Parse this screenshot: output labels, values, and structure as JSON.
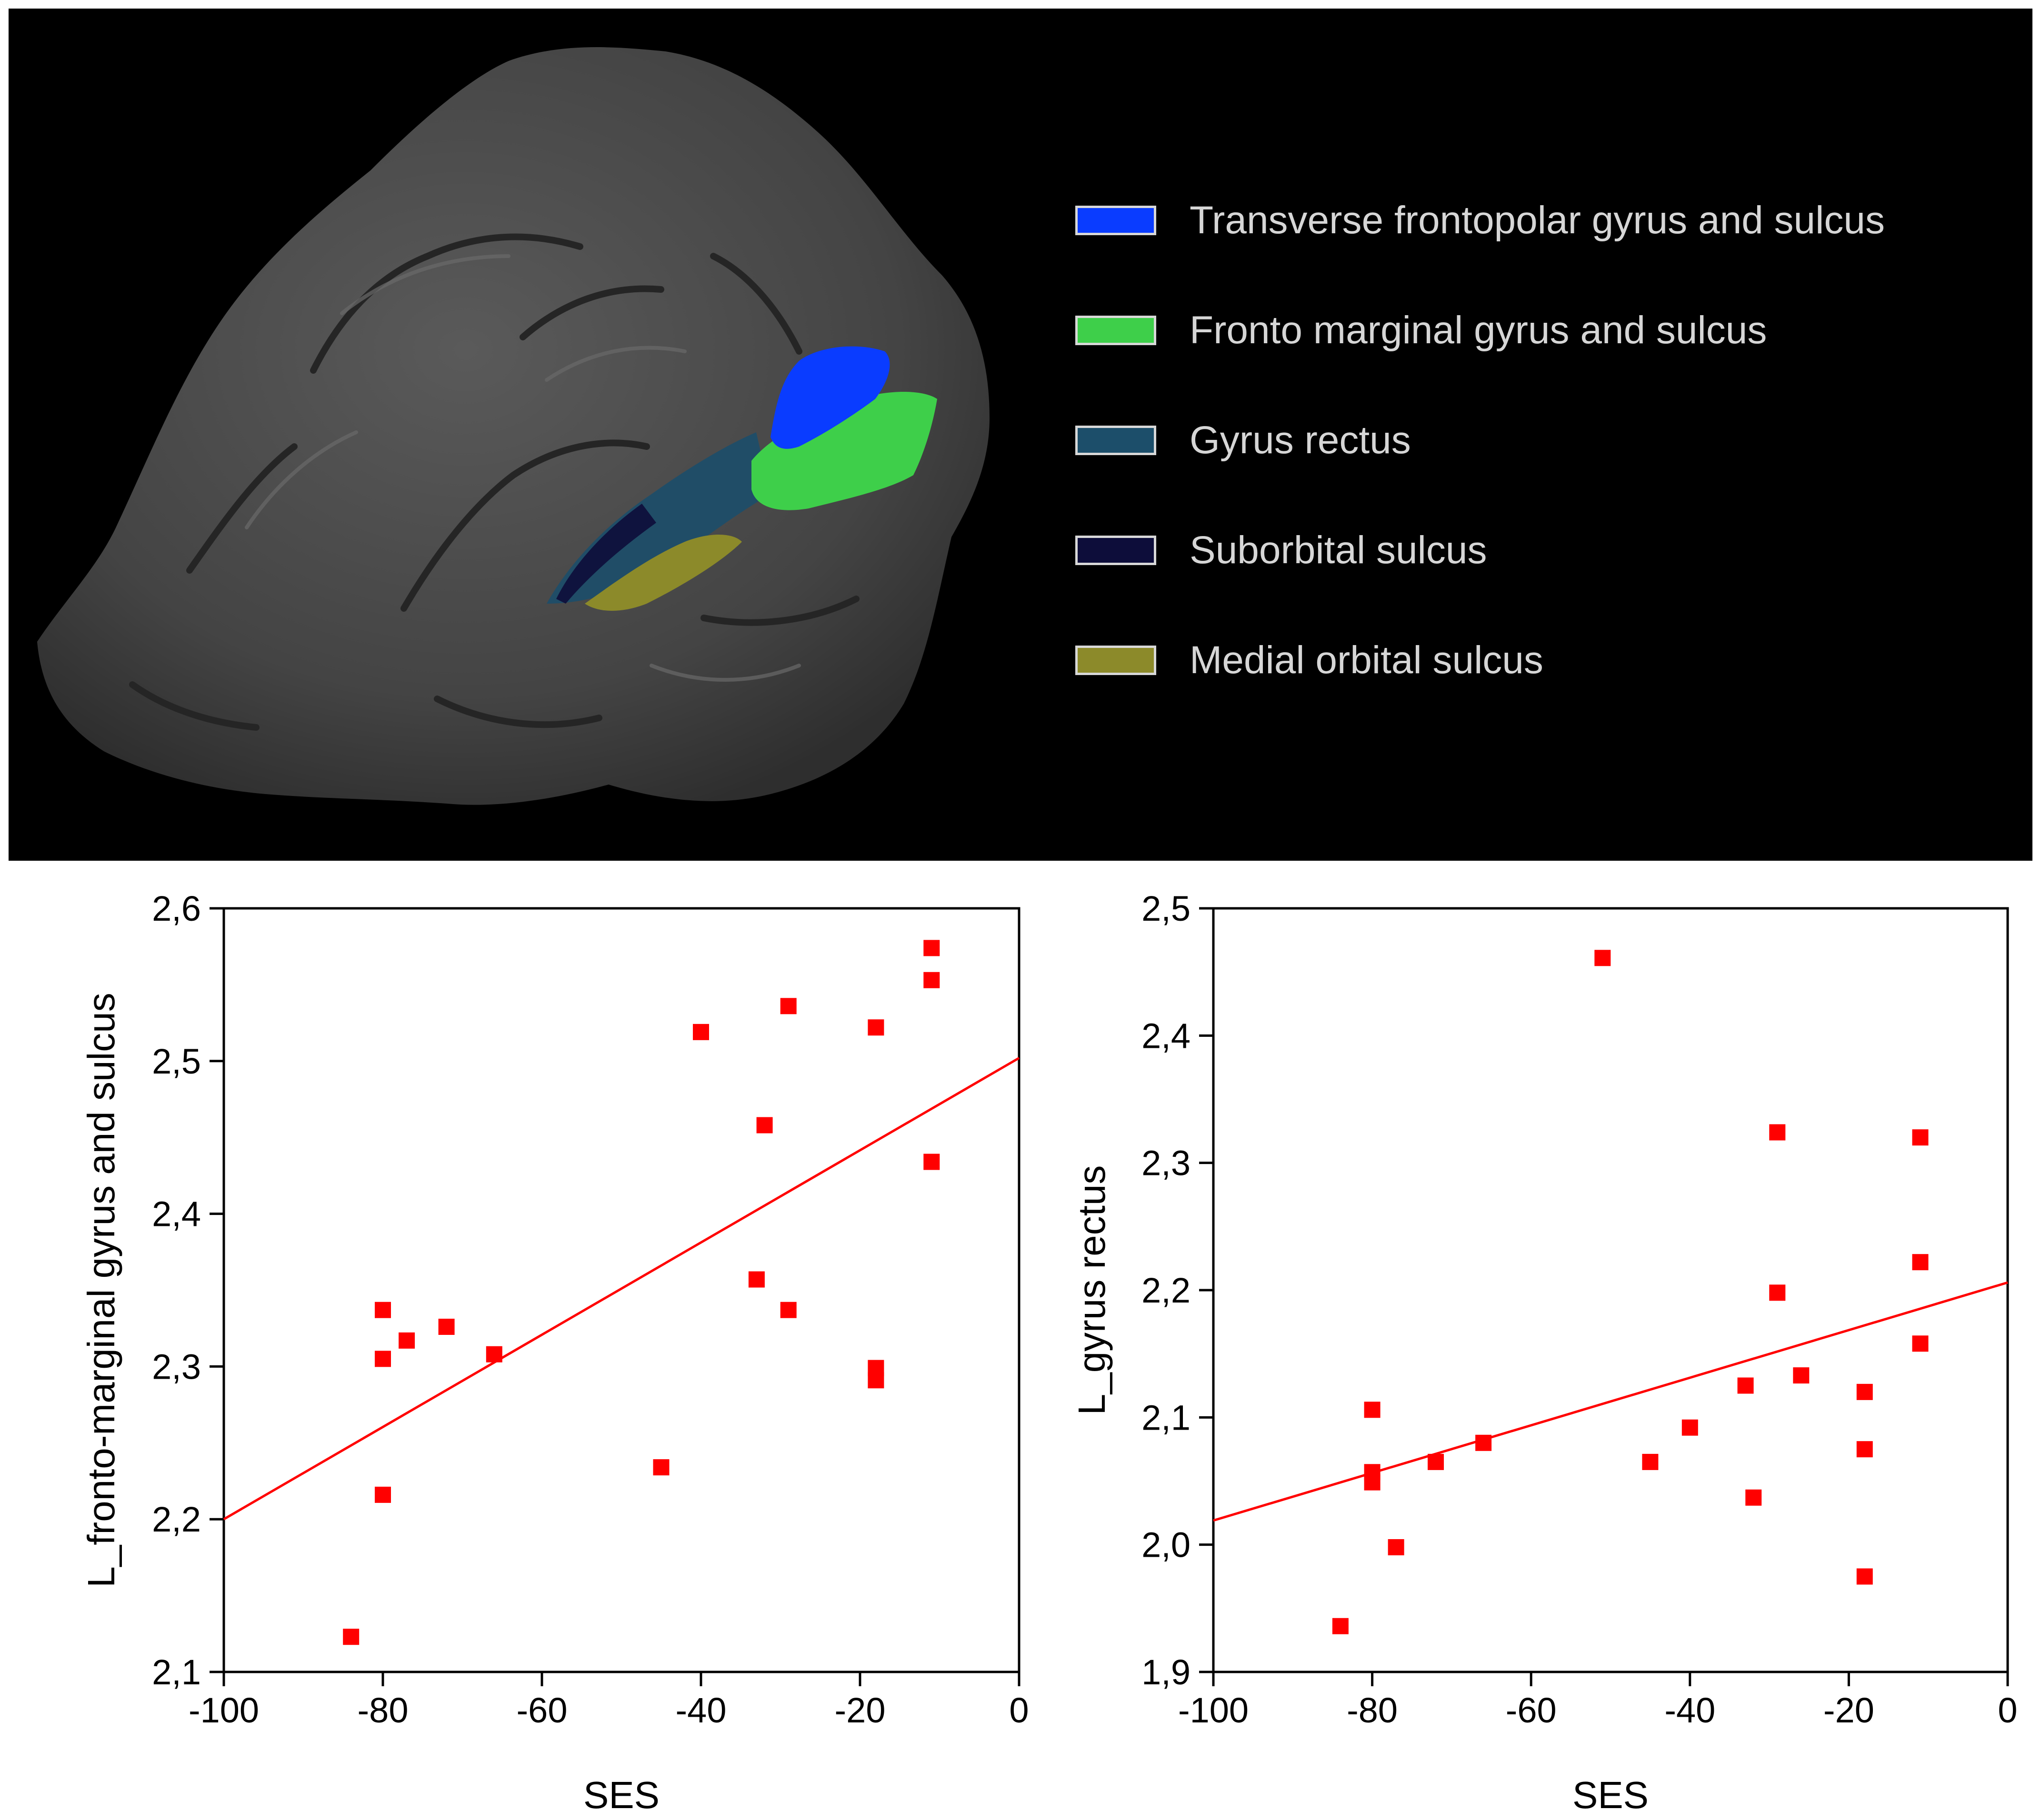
{
  "legend": {
    "items": [
      {
        "label": "Transverse frontopolar gyrus and sulcus",
        "color": "#0a3cff"
      },
      {
        "label": "Fronto marginal gyrus and sulcus",
        "color": "#3ecf4a"
      },
      {
        "label": "Gyrus rectus",
        "color": "#1c4e6a"
      },
      {
        "label": "Suborbital sulcus",
        "color": "#0d0d3a"
      },
      {
        "label": "Medial orbital sulcus",
        "color": "#8c8a2a"
      }
    ]
  },
  "colors": {
    "panel_background": "#000000",
    "brain_surface": "#4a4a4a",
    "marker": "#ff0000",
    "fit_line": "#ff0000"
  },
  "chart_data": [
    {
      "type": "scatter",
      "xlabel": "SES",
      "ylabel": "L_fronto-marginal gyrus and sulcus",
      "xlim": [
        -100,
        0
      ],
      "ylim": [
        2.1,
        2.6
      ],
      "xticks": [
        -100,
        -80,
        -60,
        -40,
        -20,
        0
      ],
      "yticks": [
        2.1,
        2.2,
        2.3,
        2.4,
        2.5,
        2.6
      ],
      "xtick_labels": [
        "-100",
        "-80",
        "-60",
        "-40",
        "-20",
        "0"
      ],
      "ytick_labels": [
        "2,1",
        "2,2",
        "2,3",
        "2,4",
        "2,5",
        "2,6"
      ],
      "grid": false,
      "points": [
        {
          "x": -84,
          "y": 2.123
        },
        {
          "x": -80,
          "y": 2.337
        },
        {
          "x": -80,
          "y": 2.305
        },
        {
          "x": -80,
          "y": 2.216
        },
        {
          "x": -77,
          "y": 2.317
        },
        {
          "x": -72,
          "y": 2.326
        },
        {
          "x": -66,
          "y": 2.308
        },
        {
          "x": -45,
          "y": 2.234
        },
        {
          "x": -40,
          "y": 2.519
        },
        {
          "x": -33,
          "y": 2.357
        },
        {
          "x": -32,
          "y": 2.458
        },
        {
          "x": -29,
          "y": 2.536
        },
        {
          "x": -29,
          "y": 2.337
        },
        {
          "x": -18,
          "y": 2.522
        },
        {
          "x": -18,
          "y": 2.299
        },
        {
          "x": -18,
          "y": 2.291
        },
        {
          "x": -11,
          "y": 2.574
        },
        {
          "x": -11,
          "y": 2.553
        },
        {
          "x": -11,
          "y": 2.434
        }
      ],
      "fit_line": {
        "x": [
          -100,
          0
        ],
        "y": [
          2.2,
          2.502
        ]
      }
    },
    {
      "type": "scatter",
      "xlabel": "SES",
      "ylabel": "L_gyrus rectus",
      "xlim": [
        -100,
        0
      ],
      "ylim": [
        1.9,
        2.5
      ],
      "xticks": [
        -100,
        -80,
        -60,
        -40,
        -20,
        0
      ],
      "yticks": [
        1.9,
        2.0,
        2.1,
        2.2,
        2.3,
        2.4,
        2.5
      ],
      "xtick_labels": [
        "-100",
        "-80",
        "-60",
        "-40",
        "-20",
        "0"
      ],
      "ytick_labels": [
        "1,9",
        "2,0",
        "2,1",
        "2,2",
        "2,3",
        "2,4",
        "2,5"
      ],
      "grid": false,
      "points": [
        {
          "x": -84,
          "y": 1.936
        },
        {
          "x": -80,
          "y": 2.106
        },
        {
          "x": -80,
          "y": 2.057
        },
        {
          "x": -80,
          "y": 2.049
        },
        {
          "x": -77,
          "y": 1.998
        },
        {
          "x": -72,
          "y": 2.065
        },
        {
          "x": -66,
          "y": 2.08
        },
        {
          "x": -51,
          "y": 2.461
        },
        {
          "x": -45,
          "y": 2.065
        },
        {
          "x": -40,
          "y": 2.092
        },
        {
          "x": -33,
          "y": 2.125
        },
        {
          "x": -32,
          "y": 2.037
        },
        {
          "x": -29,
          "y": 2.324
        },
        {
          "x": -29,
          "y": 2.198
        },
        {
          "x": -26,
          "y": 2.133
        },
        {
          "x": -18,
          "y": 2.12
        },
        {
          "x": -18,
          "y": 2.075
        },
        {
          "x": -18,
          "y": 1.975
        },
        {
          "x": -11,
          "y": 2.32
        },
        {
          "x": -11,
          "y": 2.222
        },
        {
          "x": -11,
          "y": 2.158
        }
      ],
      "fit_line": {
        "x": [
          -100,
          0
        ],
        "y": [
          2.019,
          2.206
        ]
      }
    }
  ]
}
